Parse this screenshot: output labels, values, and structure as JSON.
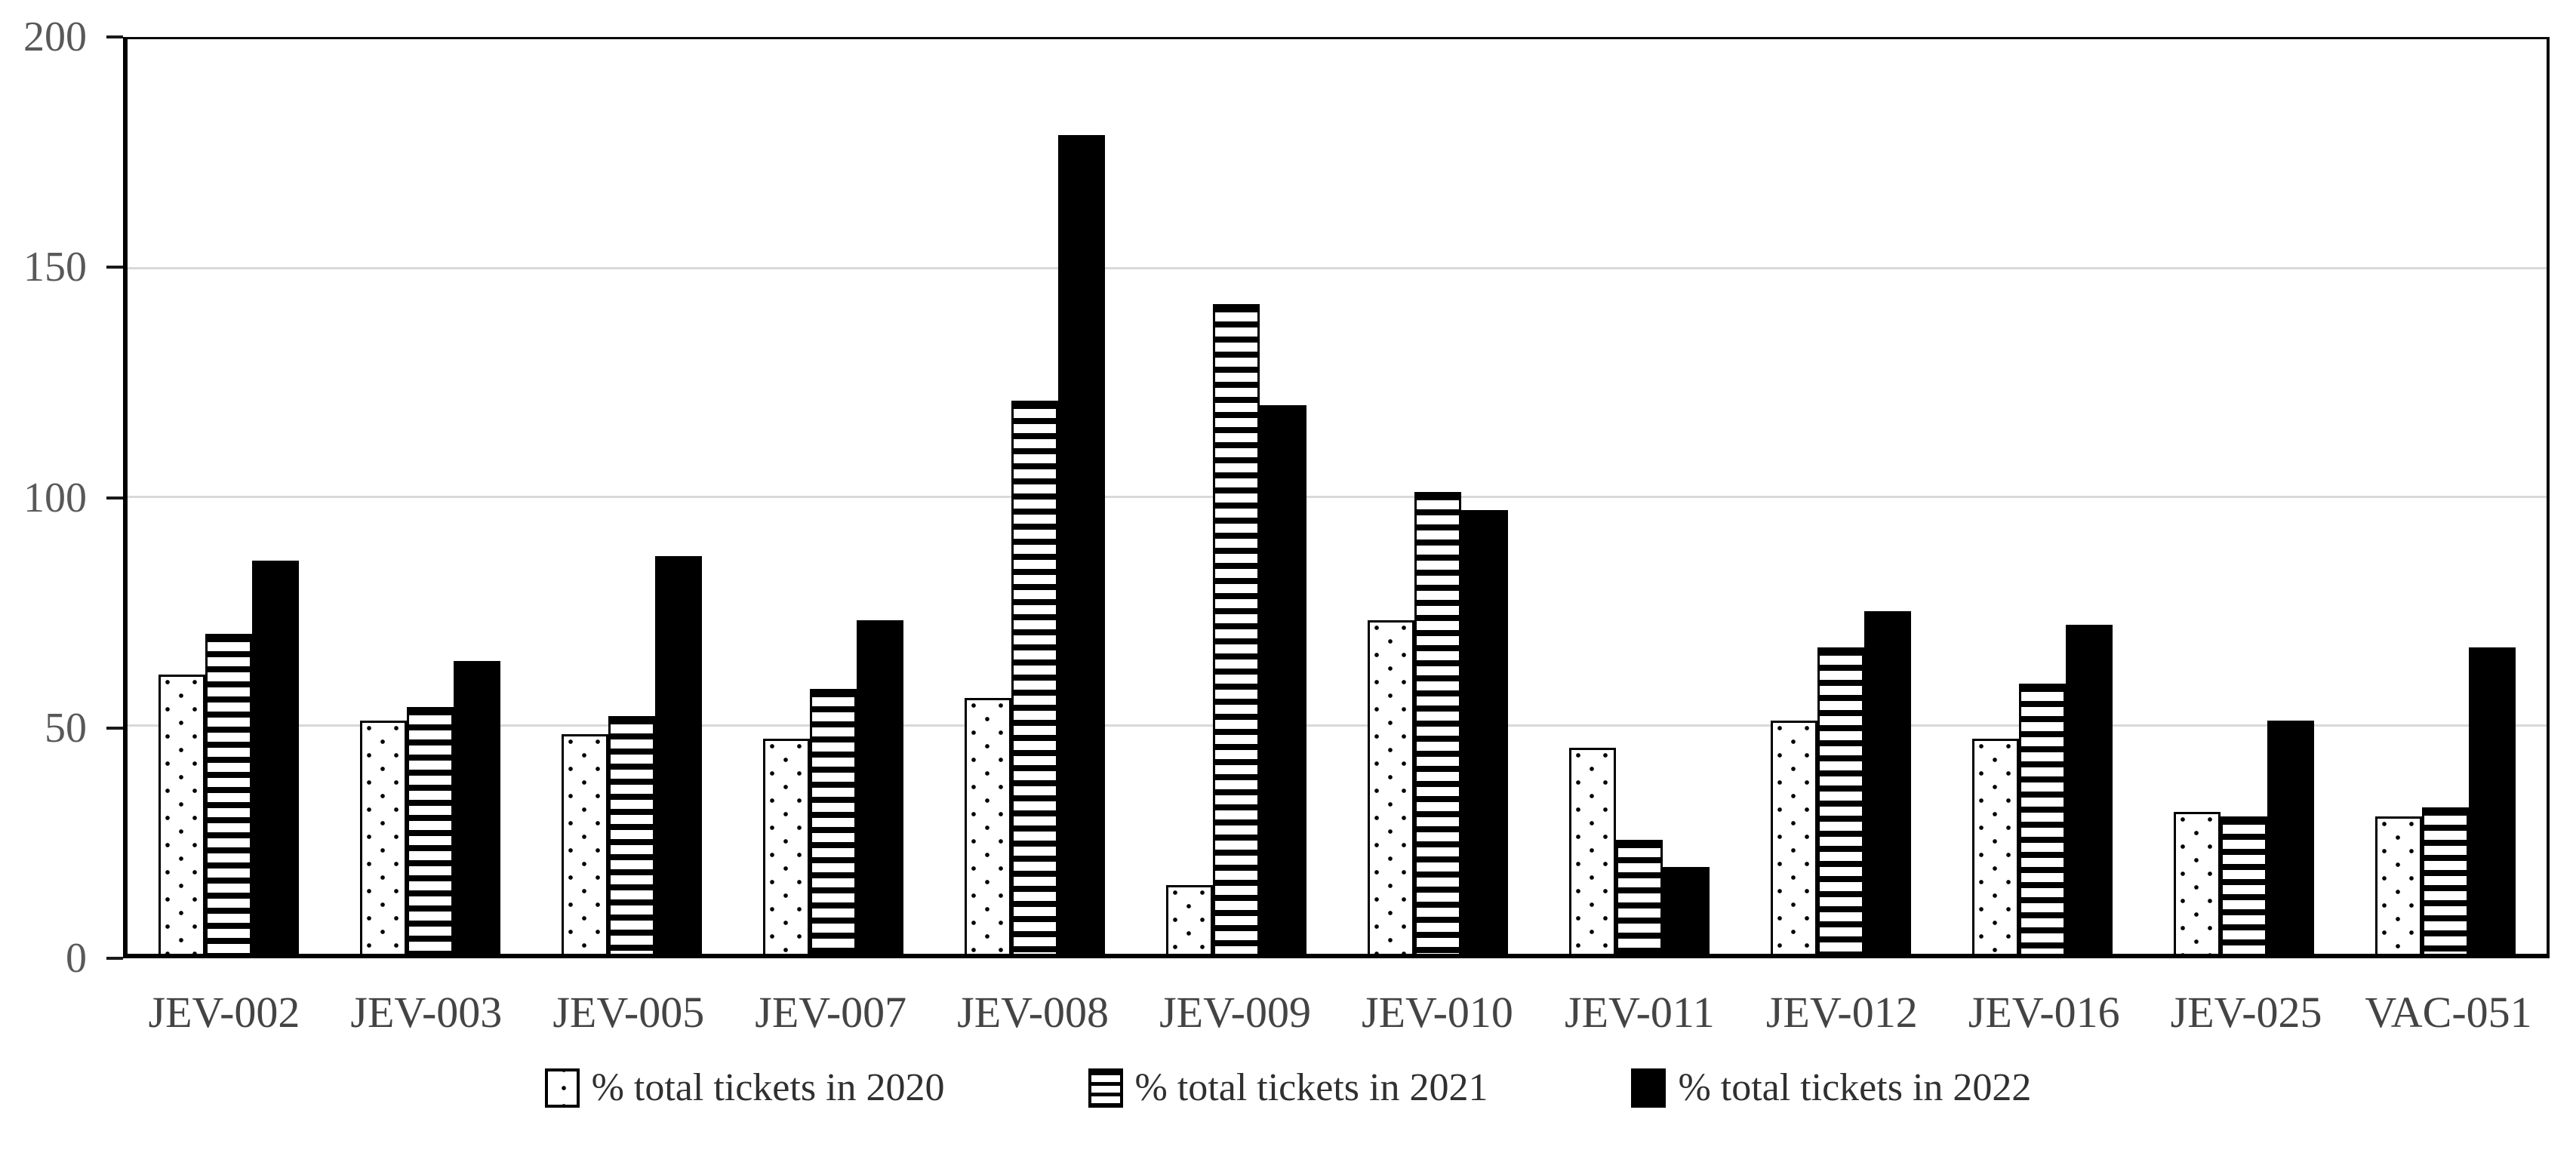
{
  "chart_data": {
    "type": "bar",
    "title": "",
    "categories": [
      "JEV-002",
      "JEV-003",
      "JEV-005",
      "JEV-007",
      "JEV-008",
      "JEV-009",
      "JEV-010",
      "JEV-011",
      "JEV-012",
      "JEV-016",
      "JEV-025",
      "VAC-051"
    ],
    "series": [
      {
        "name": "% total tickets in 2020",
        "pattern": "dots",
        "values": [
          61,
          51,
          48,
          47,
          56,
          15,
          73,
          45,
          51,
          47,
          31,
          30
        ]
      },
      {
        "name": "% total tickets in 2021",
        "pattern": "hlines",
        "values": [
          70,
          54,
          52,
          58,
          121,
          142,
          101,
          25,
          67,
          59,
          30,
          32
        ]
      },
      {
        "name": "% total tickets in 2022",
        "pattern": "solid",
        "values": [
          86,
          64,
          87,
          73,
          179,
          120,
          97,
          19,
          75,
          72,
          51,
          67
        ]
      }
    ],
    "xlabel": "",
    "ylabel": "",
    "ylim": [
      0,
      200
    ],
    "yticks": [
      0,
      50,
      100,
      150,
      200
    ],
    "grid": "horizontal",
    "legend_position": "bottom",
    "colors": {
      "bar_fill": "#000000",
      "bar_background": "#ffffff",
      "gridline": "#d9d9d9",
      "axis_line": "#000000",
      "y_tick_label": "#595959",
      "x_tick_label": "#444444",
      "legend_text": "#303030",
      "background": "#ffffff"
    }
  }
}
